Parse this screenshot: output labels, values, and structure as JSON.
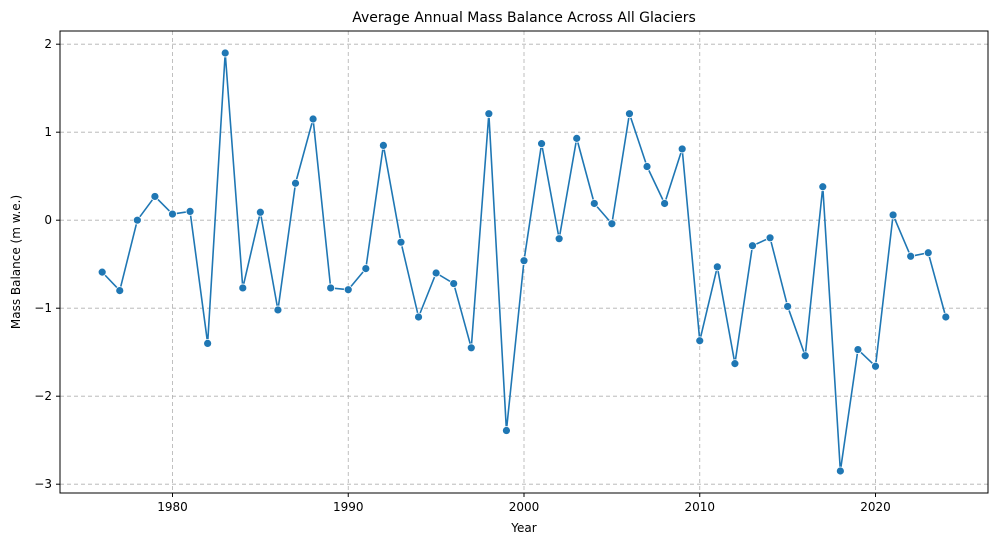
{
  "chart_data": {
    "type": "line",
    "title": "Average Annual Mass Balance Across All Glaciers",
    "xlabel": "Year",
    "ylabel": "Mass Balance (m w.e.)",
    "xlim": [
      1973.6,
      2026.4
    ],
    "ylim": [
      -3.1,
      2.15
    ],
    "xticks": [
      1980,
      1990,
      2000,
      2010,
      2020
    ],
    "xtick_labels": [
      "1980",
      "1990",
      "2000",
      "2010",
      "2020"
    ],
    "yticks": [
      -3,
      -2,
      -1,
      0,
      1,
      2
    ],
    "ytick_labels": [
      "−3",
      "−2",
      "−1",
      "0",
      "1",
      "2"
    ],
    "grid": true,
    "series": [
      {
        "color": "#1f77b4",
        "marker": "circle",
        "x": [
          1976,
          1977,
          1978,
          1979,
          1980,
          1981,
          1982,
          1983,
          1984,
          1985,
          1986,
          1987,
          1988,
          1989,
          1990,
          1991,
          1992,
          1993,
          1994,
          1995,
          1996,
          1997,
          1998,
          1999,
          2000,
          2001,
          2002,
          2003,
          2004,
          2005,
          2006,
          2007,
          2008,
          2009,
          2010,
          2011,
          2012,
          2013,
          2014,
          2015,
          2016,
          2017,
          2018,
          2019,
          2020,
          2021,
          2022,
          2023,
          2024
        ],
        "y": [
          -0.59,
          -0.8,
          0.0,
          0.27,
          0.07,
          0.1,
          -1.4,
          1.9,
          -0.77,
          0.09,
          -1.02,
          0.42,
          1.15,
          -0.77,
          -0.79,
          -0.55,
          0.85,
          -0.25,
          -1.1,
          -0.6,
          -0.72,
          -1.45,
          1.21,
          -2.39,
          -0.46,
          0.87,
          -0.21,
          0.93,
          0.19,
          -0.04,
          1.21,
          0.61,
          0.19,
          0.81,
          -1.37,
          -0.53,
          -1.63,
          -0.29,
          -0.2,
          -0.98,
          -1.54,
          0.38,
          -2.85,
          -1.47,
          -1.66,
          0.06,
          -0.41,
          -0.37,
          -1.1
        ]
      }
    ]
  }
}
